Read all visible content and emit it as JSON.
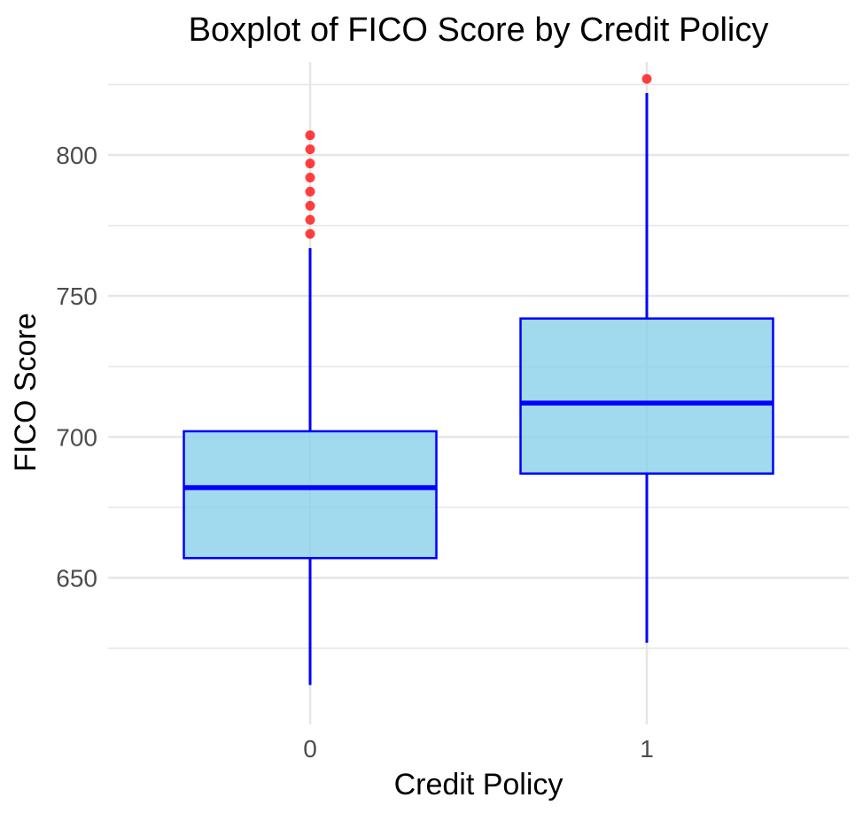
{
  "chart_data": {
    "type": "boxplot",
    "title": "Boxplot of FICO Score by Credit Policy",
    "xlabel": "Credit Policy",
    "ylabel": "FICO Score",
    "categories": [
      "0",
      "1"
    ],
    "ylim": [
      598,
      833
    ],
    "yticks": [
      650,
      700,
      750,
      800
    ],
    "yticks_minor": [
      625,
      675,
      725,
      775,
      825
    ],
    "grid": true,
    "colors": {
      "box_fill": "#87CEEB",
      "box_line": "#0000FF",
      "outlier": "#FF0000",
      "grid": "#e6e6e6"
    },
    "boxes": [
      {
        "category": "0",
        "whisker_low": 612,
        "q1": 657,
        "median": 682,
        "q3": 702,
        "whisker_high": 767,
        "outliers": [
          772,
          777,
          782,
          787,
          792,
          797,
          802,
          807
        ]
      },
      {
        "category": "1",
        "whisker_low": 627,
        "q1": 687,
        "median": 712,
        "q3": 742,
        "whisker_high": 822,
        "outliers": [
          827
        ]
      }
    ]
  }
}
